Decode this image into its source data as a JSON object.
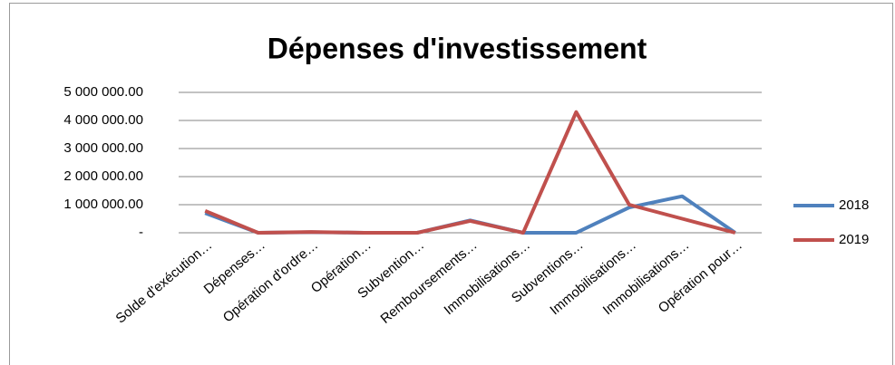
{
  "chart_data": {
    "type": "line",
    "title": "Dépenses d'investissement",
    "categories": [
      "Solde d'exécution…",
      "Dépenses…",
      "Opération d'ordre…",
      "Opération…",
      "Subvention…",
      "Remboursements…",
      "Immobilisations…",
      "Subventions…",
      "Immobilisations…",
      "Immobilisations…",
      "Opération pour…"
    ],
    "series": [
      {
        "name": "2018",
        "color": "#4f81bd",
        "values": [
          700000,
          0,
          20000,
          0,
          0,
          440000,
          0,
          0,
          900000,
          1300000,
          0
        ]
      },
      {
        "name": "2019",
        "color": "#c0504d",
        "values": [
          780000,
          0,
          30000,
          0,
          0,
          420000,
          0,
          4300000,
          1000000,
          500000,
          0
        ]
      }
    ],
    "ylim": [
      0,
      5000000
    ],
    "yticks": [
      {
        "value": 0,
        "label": "-"
      },
      {
        "value": 1000000,
        "label": "1 000 000.00"
      },
      {
        "value": 2000000,
        "label": "2 000 000.00"
      },
      {
        "value": 3000000,
        "label": "3 000 000.00"
      },
      {
        "value": 4000000,
        "label": "4 000 000.00"
      },
      {
        "value": 5000000,
        "label": "5 000 000.00"
      }
    ],
    "grid": true,
    "legend": "right"
  }
}
